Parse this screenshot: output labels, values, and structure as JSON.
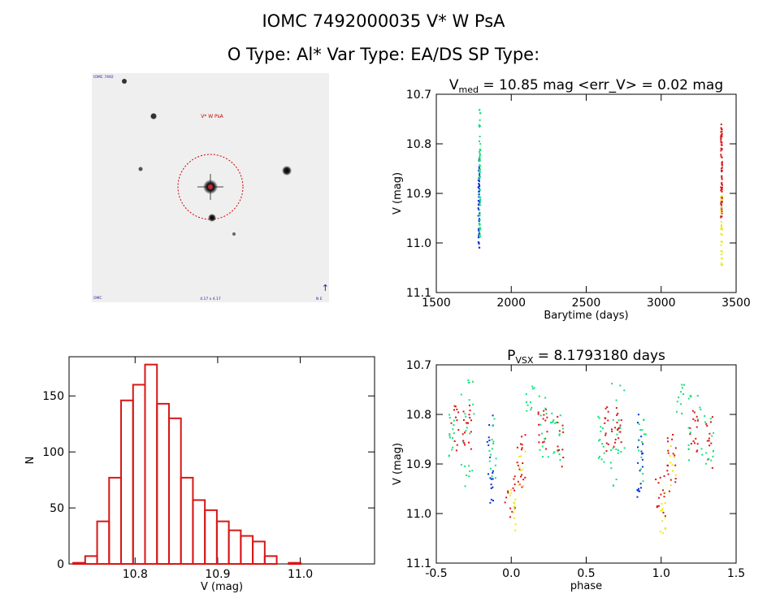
{
  "header": {
    "title_line": "IOMC 7492000035    V* W PsA",
    "type_line": "O Type: Al*  Var Type: EA/DS  SP Type:"
  },
  "colors": {
    "blue": "#0a2fd0",
    "green": "#16e07a",
    "red": "#d81616",
    "yellow": "#eaea12",
    "hist": "#d81616",
    "reticle": "#cc0000"
  },
  "stamp": {
    "target_label": "V* W PsA",
    "corner_top_left": "IOMC 7492",
    "corner_bottom_left": "OMC",
    "corner_bottom_center": "4.17 x 4.17",
    "corner_bottom_right": "N E",
    "compass_glyph": "↑"
  },
  "chart_data": [
    {
      "id": "lightcurve",
      "type": "scatter",
      "title": "V",
      "title_sub": "med",
      "title_rest": " = 10.85 mag <err_V> = 0.02 mag",
      "xlabel": "Barytime (days)",
      "ylabel": "V (mag)",
      "xlim": [
        1500,
        3500
      ],
      "ylim": [
        11.1,
        10.7
      ],
      "xticks": [
        "1500",
        "2000",
        "2500",
        "3000",
        "3500"
      ],
      "xtick_values": [
        1500,
        2000,
        2500,
        3000,
        3500
      ],
      "yticks": [
        "10.7",
        "10.8",
        "10.9",
        "11.0",
        "11.1"
      ],
      "ytick_values": [
        10.7,
        10.8,
        10.9,
        11.0,
        11.1
      ],
      "series": [
        {
          "name": "blue",
          "x_range": [
            1780,
            1790
          ],
          "y_range": [
            10.83,
            11.01
          ],
          "count": 60
        },
        {
          "name": "green",
          "x_range": [
            1785,
            1795
          ],
          "y_range": [
            10.73,
            10.99
          ],
          "count": 60
        },
        {
          "name": "red",
          "x_range": [
            3398,
            3408
          ],
          "y_range": [
            10.76,
            10.95
          ],
          "count": 70
        },
        {
          "name": "yellow",
          "x_range": [
            3398,
            3408
          ],
          "y_range": [
            10.9,
            11.05
          ],
          "count": 30
        }
      ]
    },
    {
      "id": "histogram",
      "type": "bar",
      "xlabel": "V (mag)",
      "ylabel": "N",
      "xlim": [
        10.72,
        11.09
      ],
      "ylim": [
        0,
        185
      ],
      "xticks": [
        "10.8",
        "10.9",
        "11.0"
      ],
      "xtick_values": [
        10.8,
        10.9,
        11.0
      ],
      "yticks": [
        "0",
        "50",
        "100",
        "150"
      ],
      "ytick_values": [
        0,
        50,
        100,
        150
      ],
      "bin_start": 10.725,
      "bin_width": 0.0145,
      "values": [
        1,
        7,
        38,
        77,
        146,
        160,
        178,
        143,
        130,
        77,
        57,
        48,
        38,
        30,
        25,
        20,
        7,
        0,
        1,
        0
      ]
    },
    {
      "id": "phased",
      "type": "scatter",
      "title": "P",
      "title_sub": "VSX",
      "title_rest": " = 8.1793180 days",
      "xlabel": "phase",
      "ylabel": "V (mag)",
      "xlim": [
        -0.5,
        1.5
      ],
      "ylim": [
        11.1,
        10.7
      ],
      "xticks": [
        "-0.5",
        "0.0",
        "0.5",
        "1.0",
        "1.5"
      ],
      "xtick_values": [
        -0.5,
        0.0,
        0.5,
        1.0,
        1.5
      ],
      "yticks": [
        "10.7",
        "10.8",
        "10.9",
        "11.0",
        "11.1"
      ],
      "ytick_values": [
        10.7,
        10.8,
        10.9,
        11.0,
        11.1
      ],
      "clusters": [
        {
          "series": "green",
          "phase": [
            -0.42,
            -0.38
          ],
          "mag": [
            10.8,
            10.9
          ],
          "count": 14
        },
        {
          "series": "red",
          "phase": [
            -0.4,
            -0.35
          ],
          "mag": [
            10.78,
            10.88
          ],
          "count": 12
        },
        {
          "series": "green",
          "phase": [
            -0.34,
            -0.24
          ],
          "mag": [
            10.73,
            10.95
          ],
          "count": 22
        },
        {
          "series": "red",
          "phase": [
            -0.33,
            -0.26
          ],
          "mag": [
            10.78,
            10.87
          ],
          "count": 18
        },
        {
          "series": "blue",
          "phase": [
            -0.16,
            -0.12
          ],
          "mag": [
            10.8,
            10.98
          ],
          "count": 20
        },
        {
          "series": "green",
          "phase": [
            -0.15,
            -0.1
          ],
          "mag": [
            10.8,
            10.94
          ],
          "count": 14
        },
        {
          "series": "red",
          "phase": [
            -0.05,
            0.03
          ],
          "mag": [
            10.92,
            11.01
          ],
          "count": 14
        },
        {
          "series": "yellow",
          "phase": [
            -0.01,
            0.03
          ],
          "mag": [
            10.95,
            11.05
          ],
          "count": 12
        },
        {
          "series": "red",
          "phase": [
            0.04,
            0.1
          ],
          "mag": [
            10.84,
            10.96
          ],
          "count": 18
        },
        {
          "series": "yellow",
          "phase": [
            0.05,
            0.1
          ],
          "mag": [
            10.86,
            10.95
          ],
          "count": 8
        },
        {
          "series": "green",
          "phase": [
            0.1,
            0.16
          ],
          "mag": [
            10.74,
            10.8
          ],
          "count": 10
        },
        {
          "series": "red",
          "phase": [
            0.18,
            0.25
          ],
          "mag": [
            10.79,
            10.88
          ],
          "count": 16
        },
        {
          "series": "green",
          "phase": [
            0.18,
            0.28
          ],
          "mag": [
            10.76,
            10.9
          ],
          "count": 16
        },
        {
          "series": "red",
          "phase": [
            0.3,
            0.35
          ],
          "mag": [
            10.8,
            10.91
          ],
          "count": 12
        },
        {
          "series": "green",
          "phase": [
            0.28,
            0.35
          ],
          "mag": [
            10.8,
            10.9
          ],
          "count": 12
        },
        {
          "series": "green",
          "phase": [
            0.58,
            0.62
          ],
          "mag": [
            10.8,
            10.9
          ],
          "count": 14
        },
        {
          "series": "red",
          "phase": [
            0.6,
            0.65
          ],
          "mag": [
            10.78,
            10.88
          ],
          "count": 12
        },
        {
          "series": "green",
          "phase": [
            0.66,
            0.76
          ],
          "mag": [
            10.73,
            10.95
          ],
          "count": 22
        },
        {
          "series": "red",
          "phase": [
            0.67,
            0.74
          ],
          "mag": [
            10.78,
            10.87
          ],
          "count": 18
        },
        {
          "series": "blue",
          "phase": [
            0.84,
            0.88
          ],
          "mag": [
            10.8,
            10.98
          ],
          "count": 20
        },
        {
          "series": "green",
          "phase": [
            0.85,
            0.9
          ],
          "mag": [
            10.8,
            10.94
          ],
          "count": 14
        },
        {
          "series": "red",
          "phase": [
            0.95,
            1.03
          ],
          "mag": [
            10.92,
            11.01
          ],
          "count": 14
        },
        {
          "series": "yellow",
          "phase": [
            0.99,
            1.03
          ],
          "mag": [
            10.95,
            11.05
          ],
          "count": 12
        },
        {
          "series": "red",
          "phase": [
            1.04,
            1.1
          ],
          "mag": [
            10.84,
            10.96
          ],
          "count": 18
        },
        {
          "series": "yellow",
          "phase": [
            1.05,
            1.1
          ],
          "mag": [
            10.86,
            10.95
          ],
          "count": 8
        },
        {
          "series": "green",
          "phase": [
            1.1,
            1.16
          ],
          "mag": [
            10.74,
            10.8
          ],
          "count": 10
        },
        {
          "series": "red",
          "phase": [
            1.18,
            1.25
          ],
          "mag": [
            10.79,
            10.88
          ],
          "count": 16
        },
        {
          "series": "green",
          "phase": [
            1.18,
            1.28
          ],
          "mag": [
            10.76,
            10.9
          ],
          "count": 16
        },
        {
          "series": "red",
          "phase": [
            1.3,
            1.35
          ],
          "mag": [
            10.8,
            10.91
          ],
          "count": 12
        },
        {
          "series": "green",
          "phase": [
            1.28,
            1.35
          ],
          "mag": [
            10.8,
            10.9
          ],
          "count": 12
        }
      ]
    }
  ]
}
